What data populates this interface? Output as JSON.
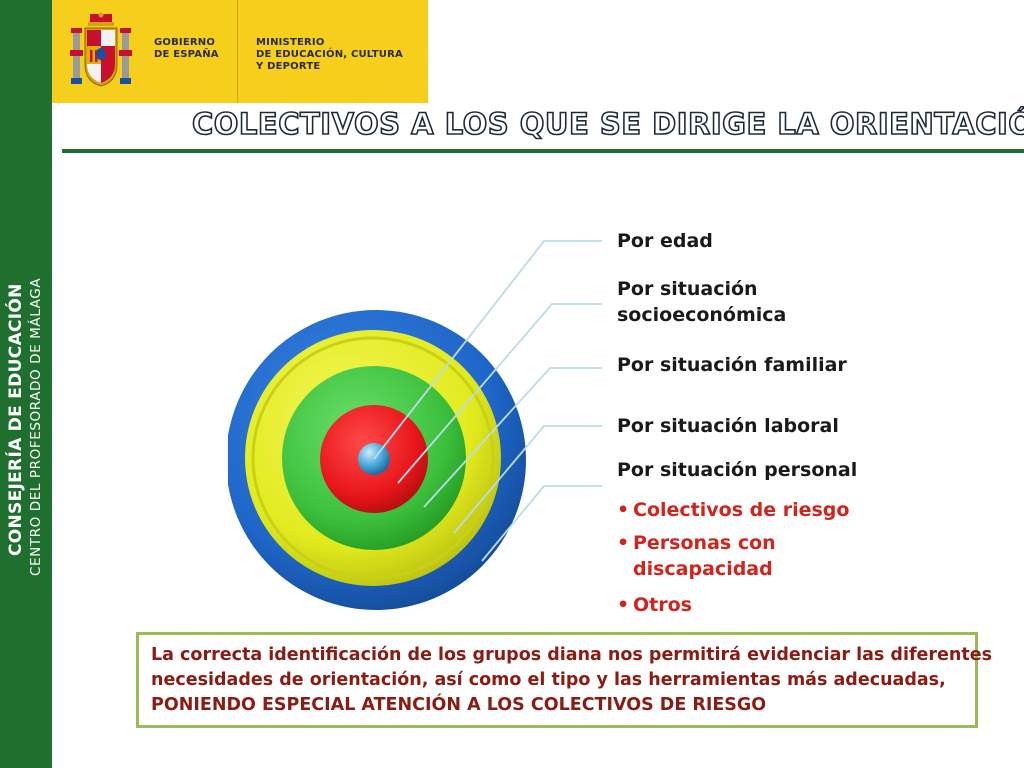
{
  "sidebar": {
    "line1": "CONSEJERÍA DE EDUCACIÓN",
    "line2": "CENTRO DEL PROFESORADO DE MÁLAGA",
    "color": "#1f6f2e"
  },
  "header": {
    "background": "#f6cf1c",
    "logo_icon": "coat-of-arms-of-spain",
    "gov_lines": [
      "GOBIERNO",
      "DE ESPAÑA"
    ],
    "ministry_lines": [
      "MINISTERIO",
      "DE EDUCACIÓN, CULTURA",
      "Y DEPORTE"
    ]
  },
  "title": "COLECTIVOS A LOS QUE SE DIRIGE LA ORIENTACIÓN",
  "target": {
    "rings": [
      {
        "name": "outer",
        "color": "#1e66c8"
      },
      {
        "name": "yellow",
        "color": "#e2ea1e"
      },
      {
        "name": "green",
        "color": "#3cc03c"
      },
      {
        "name": "red",
        "color": "#e8161b"
      },
      {
        "name": "center",
        "color": "#4aa6d8"
      }
    ]
  },
  "labels": [
    {
      "text": "Por edad"
    },
    {
      "text": "Por situación socioeconómica",
      "lines": [
        "Por situación",
        "socioeconómica"
      ]
    },
    {
      "text": "Por situación familiar"
    },
    {
      "text": "Por situación laboral"
    },
    {
      "text": "Por situación personal"
    }
  ],
  "bullets": [
    {
      "lines": [
        "Colectivos de riesgo"
      ]
    },
    {
      "lines": [
        "Personas con",
        "discapacidad"
      ]
    },
    {
      "lines": [
        "Otros"
      ]
    }
  ],
  "bullet_symbol": "•",
  "note": {
    "lines": [
      "La correcta identificación de los grupos diana nos permitirá evidenciar las diferentes",
      "necesidades de orientación, así como el tipo y las herramientas más adecuadas,",
      "PONIENDO ESPECIAL ATENCIÓN A LOS COLECTIVOS DE RIESGO"
    ],
    "border_color": "#9bbb59",
    "text_color": "#8a1c13"
  }
}
